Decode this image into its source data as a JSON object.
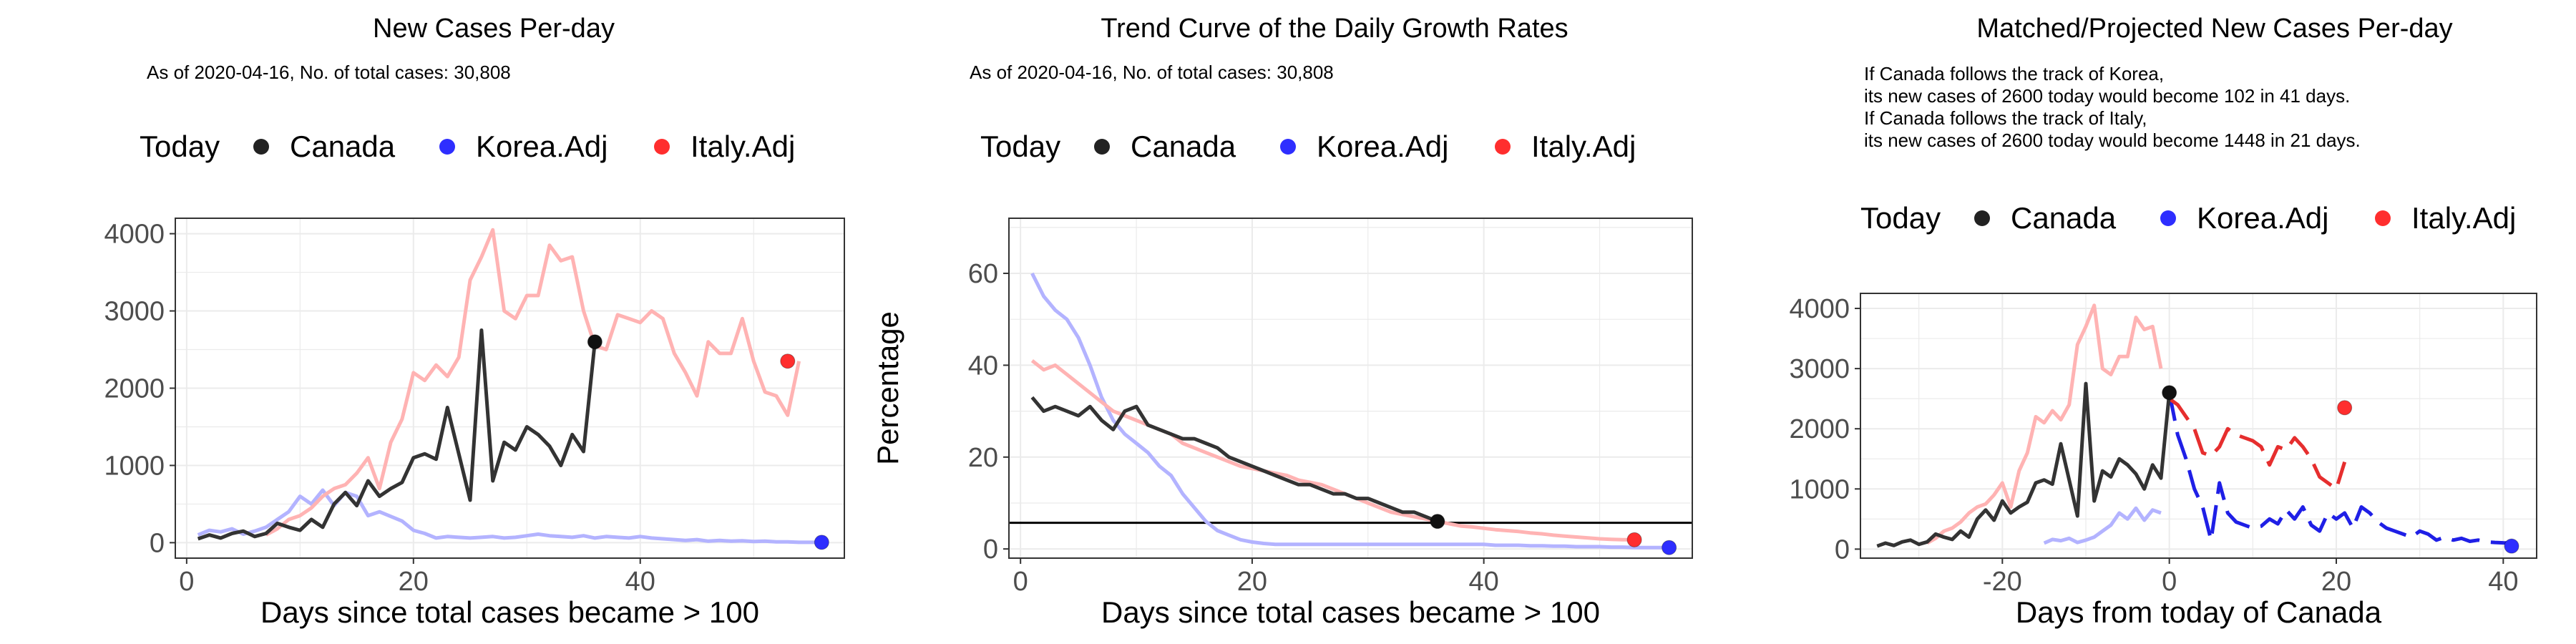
{
  "legend_labels": {
    "today": "Today",
    "canada": "Canada",
    "korea": "Korea.Adj",
    "italy": "Italy.Adj"
  },
  "colors": {
    "canada": "#333333",
    "korea": "#2E2EFF",
    "italy": "#FF2E2E",
    "korea_faint": "#B3B3FF",
    "italy_faint": "#FFB3B3",
    "canada_proj": "#000000",
    "korea_proj": "#1F1FE6",
    "italy_proj": "#E62E2E"
  },
  "chart_data": [
    {
      "type": "line",
      "title": "New Cases Per-day",
      "subtitle": "As of 2020-04-16, No. of total cases: 30,808",
      "xlabel": "Days since total cases became > 100",
      "ylabel": "",
      "xlim": [
        -1,
        58
      ],
      "ylim": [
        -200,
        4200
      ],
      "xticks": [
        0,
        20,
        40
      ],
      "yticks": [
        0,
        1000,
        2000,
        3000,
        4000
      ],
      "grid": true,
      "legend_position": "top",
      "series": [
        {
          "name": "Canada",
          "x": [
            1,
            2,
            3,
            4,
            5,
            6,
            7,
            8,
            9,
            10,
            11,
            12,
            13,
            14,
            15,
            16,
            17,
            18,
            19,
            20,
            21,
            22,
            23,
            24,
            25,
            26,
            27,
            28,
            29,
            30,
            31,
            32,
            33,
            34,
            35,
            36
          ],
          "y": [
            50,
            100,
            60,
            120,
            150,
            80,
            120,
            250,
            200,
            160,
            300,
            200,
            500,
            650,
            480,
            800,
            600,
            700,
            780,
            1100,
            1150,
            1080,
            1750,
            1150,
            550,
            2750,
            800,
            1300,
            1200,
            1500,
            1400,
            1250,
            1000,
            1400,
            1180,
            2600
          ]
        },
        {
          "name": "Korea.Adj",
          "x": [
            1,
            2,
            3,
            4,
            5,
            6,
            7,
            8,
            9,
            10,
            11,
            12,
            13,
            14,
            15,
            16,
            17,
            18,
            19,
            20,
            21,
            22,
            23,
            24,
            25,
            26,
            27,
            28,
            29,
            30,
            31,
            32,
            33,
            34,
            35,
            36,
            37,
            38,
            39,
            40,
            41,
            42,
            43,
            44,
            45,
            46,
            47,
            48,
            49,
            50,
            51,
            52,
            53,
            54,
            55,
            56
          ],
          "y": [
            100,
            160,
            140,
            180,
            110,
            150,
            200,
            300,
            400,
            600,
            500,
            680,
            480,
            650,
            600,
            350,
            400,
            340,
            280,
            160,
            120,
            60,
            80,
            70,
            60,
            70,
            80,
            60,
            70,
            90,
            110,
            90,
            80,
            70,
            90,
            60,
            80,
            70,
            60,
            80,
            60,
            50,
            40,
            30,
            40,
            20,
            30,
            20,
            25,
            15,
            20,
            10,
            10,
            5,
            5,
            5
          ]
        },
        {
          "name": "Italy.Adj",
          "x": [
            7,
            8,
            9,
            10,
            11,
            12,
            13,
            14,
            15,
            16,
            17,
            18,
            19,
            20,
            21,
            22,
            23,
            24,
            25,
            26,
            27,
            28,
            29,
            30,
            31,
            32,
            33,
            34,
            35,
            36,
            37,
            38,
            39,
            40,
            41,
            42,
            43,
            44,
            45,
            46,
            47,
            48,
            49,
            50,
            51,
            52,
            53,
            54
          ],
          "y": [
            100,
            180,
            300,
            350,
            450,
            600,
            700,
            750,
            900,
            1100,
            700,
            1300,
            1600,
            2200,
            2100,
            2300,
            2150,
            2400,
            3400,
            3700,
            4050,
            3000,
            2900,
            3200,
            3200,
            3850,
            3650,
            3700,
            3000,
            2550,
            2500,
            2950,
            2900,
            2850,
            3000,
            2900,
            2450,
            2200,
            1900,
            2600,
            2450,
            2450,
            2900,
            2350,
            1950,
            1900,
            1650,
            2350
          ]
        }
      ],
      "today_markers": [
        {
          "series": "Canada",
          "x": 36,
          "y": 2600
        },
        {
          "series": "Korea.Adj",
          "x": 56,
          "y": 5
        },
        {
          "series": "Italy.Adj",
          "x": 53,
          "y": 2350
        }
      ]
    },
    {
      "type": "line",
      "title": "Trend Curve of the Daily Growth Rates",
      "subtitle": "As of 2020-04-16, No. of total cases: 30,808",
      "xlabel": "Days since total cases became > 100",
      "ylabel": "Percentage",
      "xlim": [
        -1,
        58
      ],
      "ylim": [
        -2,
        72
      ],
      "xticks": [
        0,
        20,
        40
      ],
      "yticks": [
        0,
        20,
        40,
        60
      ],
      "grid": true,
      "legend_position": "top",
      "reference_line_y": 5.7,
      "series": [
        {
          "name": "Canada",
          "x": [
            1,
            2,
            3,
            4,
            5,
            6,
            7,
            8,
            9,
            10,
            11,
            12,
            13,
            14,
            15,
            16,
            17,
            18,
            19,
            20,
            21,
            22,
            23,
            24,
            25,
            26,
            27,
            28,
            29,
            30,
            31,
            32,
            33,
            34,
            35,
            36
          ],
          "y": [
            33,
            30,
            31,
            30,
            29,
            31,
            28,
            26,
            30,
            31,
            27,
            26,
            25,
            24,
            24,
            23,
            22,
            20,
            19,
            18,
            17,
            16,
            15,
            14,
            14,
            13,
            12,
            12,
            11,
            11,
            10,
            9,
            8,
            8,
            7,
            6
          ]
        },
        {
          "name": "Korea.Adj",
          "x": [
            1,
            2,
            3,
            4,
            5,
            6,
            7,
            8,
            9,
            10,
            11,
            12,
            13,
            14,
            15,
            16,
            17,
            18,
            19,
            20,
            21,
            22,
            23,
            24,
            25,
            26,
            27,
            28,
            29,
            30,
            31,
            32,
            33,
            34,
            35,
            36,
            37,
            38,
            39,
            40,
            41,
            42,
            43,
            44,
            45,
            46,
            47,
            48,
            49,
            50,
            51,
            52,
            53,
            54,
            55,
            56
          ],
          "y": [
            60,
            55,
            52,
            50,
            46,
            40,
            33,
            28,
            25,
            23,
            21,
            18,
            16,
            12,
            9,
            6,
            4,
            3,
            2,
            1.5,
            1.2,
            1,
            1,
            1,
            1,
            1,
            1,
            1,
            1,
            1,
            1,
            1,
            1,
            1,
            1,
            1,
            1,
            1,
            1,
            1,
            0.8,
            0.8,
            0.8,
            0.7,
            0.7,
            0.6,
            0.6,
            0.5,
            0.5,
            0.5,
            0.4,
            0.4,
            0.3,
            0.3,
            0.3,
            0.3
          ]
        },
        {
          "name": "Italy.Adj",
          "x": [
            1,
            2,
            3,
            4,
            5,
            6,
            7,
            8,
            9,
            10,
            11,
            12,
            13,
            14,
            15,
            16,
            17,
            18,
            19,
            20,
            21,
            22,
            23,
            24,
            25,
            26,
            27,
            28,
            29,
            30,
            31,
            32,
            33,
            34,
            35,
            36,
            37,
            38,
            39,
            40,
            41,
            42,
            43,
            44,
            45,
            46,
            47,
            48,
            49,
            50,
            51,
            52,
            53
          ],
          "y": [
            41,
            39,
            40,
            38,
            36,
            34,
            32,
            30,
            29,
            28,
            27,
            26,
            25,
            23,
            22,
            21,
            20,
            19,
            18,
            17.5,
            17,
            16.5,
            16,
            15,
            14.5,
            14,
            13,
            12,
            11,
            10,
            9,
            8,
            7.5,
            7,
            6.5,
            6,
            5.5,
            5,
            4.8,
            4.5,
            4.2,
            4,
            3.8,
            3.5,
            3.3,
            3,
            2.8,
            2.6,
            2.4,
            2.2,
            2.1,
            2,
            2
          ]
        }
      ],
      "today_markers": [
        {
          "series": "Canada",
          "x": 36,
          "y": 6
        },
        {
          "series": "Korea.Adj",
          "x": 56,
          "y": 0.3
        },
        {
          "series": "Italy.Adj",
          "x": 53,
          "y": 2
        }
      ]
    },
    {
      "type": "line",
      "title": "Matched/Projected New Cases Per-day",
      "notes": [
        "If Canada follows the track of Korea,",
        "its new cases of 2600 today would become 102 in 41 days.",
        "If Canada follows the track of Italy,",
        "its new cases of 2600 today would become 1448 in 21 days."
      ],
      "xlabel": "Days from today of Canada",
      "ylabel": "",
      "xlim": [
        -37,
        44
      ],
      "ylim": [
        -150,
        4250
      ],
      "xticks": [
        -20,
        0,
        20,
        40
      ],
      "yticks": [
        0,
        1000,
        2000,
        3000,
        4000
      ],
      "grid": true,
      "legend_position": "top",
      "series": [
        {
          "name": "Canada",
          "x": [
            -35,
            -34,
            -33,
            -32,
            -31,
            -30,
            -29,
            -28,
            -27,
            -26,
            -25,
            -24,
            -23,
            -22,
            -21,
            -20,
            -19,
            -18,
            -17,
            -16,
            -15,
            -14,
            -13,
            -12,
            -11,
            -10,
            -9,
            -8,
            -7,
            -6,
            -5,
            -4,
            -3,
            -2,
            -1,
            0
          ],
          "y": [
            50,
            100,
            60,
            120,
            150,
            80,
            120,
            250,
            200,
            160,
            300,
            200,
            500,
            650,
            480,
            800,
            600,
            700,
            780,
            1100,
            1150,
            1080,
            1750,
            1150,
            550,
            2750,
            800,
            1300,
            1200,
            1500,
            1400,
            1250,
            1000,
            1400,
            1180,
            2600
          ]
        },
        {
          "name": "Korea.Adj",
          "x": [
            -15,
            -14,
            -13,
            -12,
            -11,
            -10,
            -9,
            -8,
            -7,
            -6,
            -5,
            -4,
            -3,
            -2,
            -1
          ],
          "y": [
            100,
            160,
            140,
            180,
            110,
            150,
            200,
            300,
            400,
            600,
            500,
            680,
            480,
            650,
            600
          ]
        },
        {
          "name": "Korea.Adj projected",
          "x": [
            0,
            1,
            2,
            3,
            4,
            5,
            6,
            7,
            8,
            9,
            10,
            11,
            12,
            13,
            14,
            15,
            16,
            17,
            18,
            19,
            20,
            21,
            22,
            23,
            24,
            25,
            26,
            27,
            28,
            29,
            30,
            31,
            32,
            33,
            34,
            35,
            36,
            37,
            38,
            39,
            40,
            41
          ],
          "y": [
            2600,
            1900,
            1500,
            1000,
            700,
            150,
            1100,
            600,
            450,
            400,
            350,
            380,
            500,
            420,
            650,
            500,
            700,
            400,
            300,
            600,
            500,
            600,
            350,
            700,
            600,
            450,
            350,
            300,
            250,
            200,
            300,
            250,
            150,
            200,
            150,
            180,
            130,
            150,
            120,
            110,
            105,
            102
          ]
        },
        {
          "name": "Italy.Adj",
          "x": [
            -29,
            -28,
            -27,
            -26,
            -25,
            -24,
            -23,
            -22,
            -21,
            -20,
            -19,
            -18,
            -17,
            -16,
            -15,
            -14,
            -13,
            -12,
            -11,
            -10,
            -9,
            -8,
            -7,
            -6,
            -5,
            -4,
            -3,
            -2,
            -1
          ],
          "y": [
            100,
            180,
            300,
            350,
            450,
            600,
            700,
            750,
            900,
            1100,
            700,
            1300,
            1600,
            2200,
            2100,
            2300,
            2150,
            2400,
            3400,
            3700,
            4050,
            3000,
            2900,
            3200,
            3200,
            3850,
            3650,
            3700,
            3000
          ]
        },
        {
          "name": "Italy.Adj projected",
          "x": [
            0,
            1,
            2,
            3,
            4,
            5,
            6,
            7,
            8,
            9,
            10,
            11,
            12,
            13,
            14,
            15,
            16,
            17,
            18,
            19,
            20,
            21
          ],
          "y": [
            2500,
            2400,
            2200,
            2000,
            1600,
            1550,
            1700,
            2000,
            1900,
            1850,
            1800,
            1700,
            1400,
            1700,
            1650,
            1850,
            1700,
            1500,
            1200,
            1100,
            1000,
            1448
          ]
        }
      ],
      "today_markers": [
        {
          "series": "Canada",
          "x": 0,
          "y": 2600
        },
        {
          "series": "Korea.Adj",
          "x": 41,
          "y": 50
        },
        {
          "series": "Italy.Adj",
          "x": 21,
          "y": 2350
        }
      ]
    }
  ]
}
